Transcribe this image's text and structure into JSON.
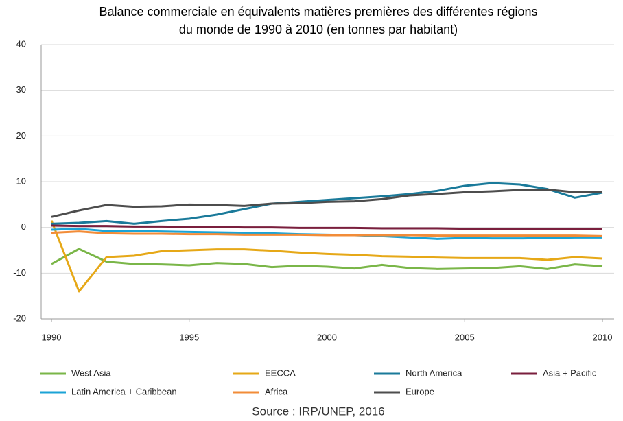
{
  "chart_data": {
    "type": "line",
    "title": [
      "Balance commerciale en équivalents matières premières des différentes régions",
      "du monde de 1990 à 2010 (en tonnes par habitant)"
    ],
    "source": "Source : IRP/UNEP, 2016",
    "x": [
      1990,
      1991,
      1992,
      1993,
      1994,
      1995,
      1996,
      1997,
      1998,
      1999,
      2000,
      2001,
      2002,
      2003,
      2004,
      2005,
      2006,
      2007,
      2008,
      2009,
      2010
    ],
    "xlim": [
      1990,
      2010
    ],
    "xticks": [
      1990,
      1995,
      2000,
      2005,
      2010
    ],
    "ylim": [
      -20,
      40
    ],
    "yticks": [
      -20,
      -10,
      0,
      10,
      20,
      30,
      40
    ],
    "grid": true,
    "legend": "bottom",
    "series": [
      {
        "name": "West Asia",
        "color": "#7ab648",
        "values": [
          -8,
          -4.7,
          -7.5,
          -8,
          -8.1,
          -8.3,
          -7.8,
          -8,
          -8.7,
          -8.4,
          -8.6,
          -9,
          -8.2,
          -8.9,
          -9.1,
          -9,
          -8.9,
          -8.5,
          -9.1,
          -8.1,
          -8.5
        ]
      },
      {
        "name": "EECCA",
        "color": "#e6a817",
        "values": [
          1.5,
          -14,
          -6.5,
          -6.2,
          -5.2,
          -5,
          -4.8,
          -4.8,
          -5.1,
          -5.5,
          -5.8,
          -6,
          -6.3,
          -6.4,
          -6.6,
          -6.7,
          -6.7,
          -6.7,
          -7.1,
          -6.5,
          -6.8
        ]
      },
      {
        "name": "North America",
        "color": "#1a7a9a",
        "values": [
          0.8,
          1,
          1.4,
          0.8,
          1.4,
          1.9,
          2.8,
          4,
          5.2,
          5.6,
          6,
          6.4,
          6.8,
          7.3,
          8,
          9.1,
          9.7,
          9.4,
          8.4,
          6.5,
          7.6
        ]
      },
      {
        "name": "Asia + Pacific",
        "color": "#7a1f3d",
        "values": [
          0.4,
          0.3,
          0.3,
          0.2,
          0.2,
          0.1,
          0.1,
          0,
          0,
          -0.1,
          -0.1,
          -0.1,
          -0.2,
          -0.2,
          -0.2,
          -0.3,
          -0.3,
          -0.4,
          -0.3,
          -0.3,
          -0.3
        ]
      },
      {
        "name": "Latin America + Caribbean",
        "color": "#1ba3d6",
        "values": [
          -0.5,
          -0.3,
          -0.8,
          -0.8,
          -0.9,
          -1,
          -1.1,
          -1.2,
          -1.3,
          -1.5,
          -1.6,
          -1.7,
          -1.9,
          -2.2,
          -2.5,
          -2.3,
          -2.4,
          -2.4,
          -2.3,
          -2.2,
          -2.2
        ]
      },
      {
        "name": "Africa",
        "color": "#f28c38",
        "values": [
          -1.2,
          -0.9,
          -1.3,
          -1.4,
          -1.4,
          -1.5,
          -1.5,
          -1.6,
          -1.6,
          -1.6,
          -1.7,
          -1.7,
          -1.7,
          -1.7,
          -1.8,
          -1.8,
          -1.8,
          -1.8,
          -1.8,
          -1.8,
          -1.9
        ]
      },
      {
        "name": "Europe",
        "color": "#4d4d4d",
        "values": [
          2.3,
          3.7,
          4.9,
          4.5,
          4.6,
          5,
          4.9,
          4.7,
          5.2,
          5.3,
          5.6,
          5.7,
          6.2,
          7,
          7.3,
          7.7,
          7.9,
          8.2,
          8.3,
          7.7,
          7.7
        ]
      }
    ]
  }
}
